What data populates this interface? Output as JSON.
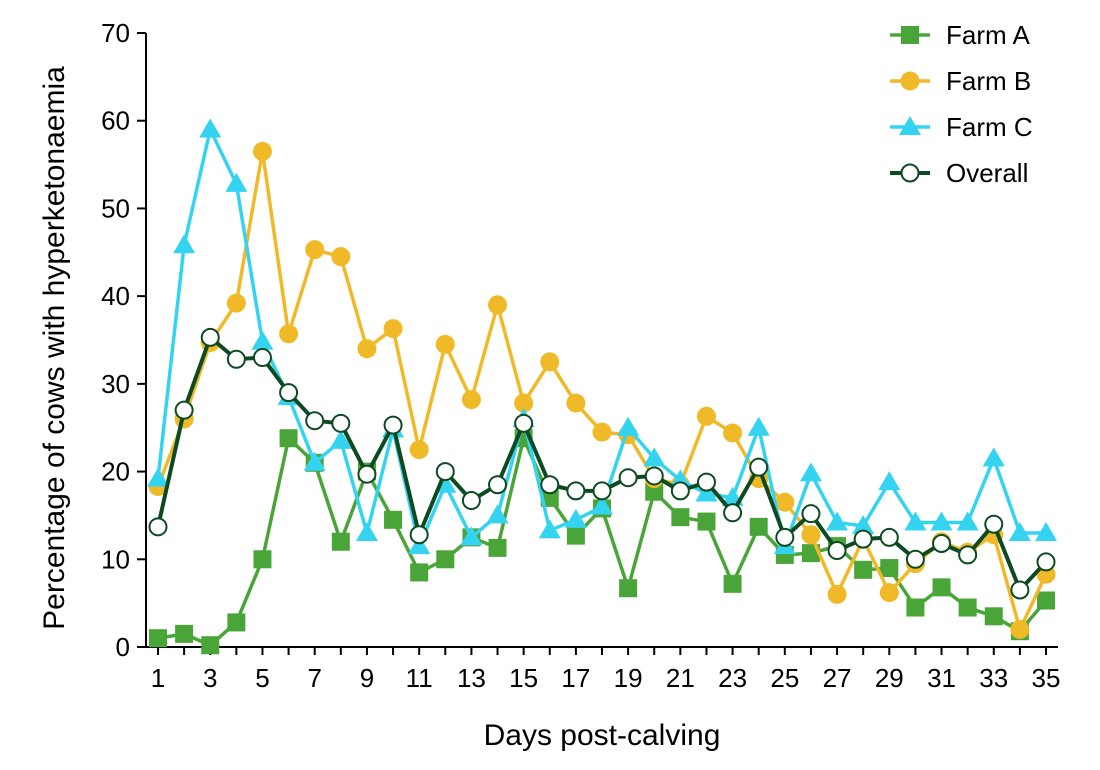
{
  "chart_data": {
    "type": "line",
    "xlabel": "Days post-calving",
    "ylabel": "Percentage of cows with hyperketonaemia",
    "xlim": [
      1,
      35
    ],
    "ylim": [
      0,
      70
    ],
    "x_ticks": [
      1,
      3,
      5,
      7,
      9,
      11,
      13,
      15,
      17,
      19,
      21,
      23,
      25,
      27,
      29,
      31,
      33,
      35
    ],
    "x_tick_labels": [
      "1",
      "3",
      "5",
      "7",
      "9",
      "11",
      "13",
      "15",
      "17",
      "19",
      "21",
      "23",
      "25",
      "27",
      "29",
      "31",
      "33",
      "35"
    ],
    "y_ticks": [
      0,
      10,
      20,
      30,
      40,
      50,
      60,
      70
    ],
    "y_tick_labels": [
      "0",
      "10",
      "20",
      "30",
      "40",
      "50",
      "60",
      "70"
    ],
    "grid": false,
    "legend": "top-right",
    "x": [
      1,
      2,
      3,
      4,
      5,
      6,
      7,
      8,
      9,
      10,
      11,
      12,
      13,
      14,
      15,
      16,
      17,
      18,
      19,
      20,
      21,
      22,
      23,
      24,
      25,
      26,
      27,
      28,
      29,
      30,
      31,
      32,
      33,
      34,
      35
    ],
    "series": [
      {
        "name": "Farm A",
        "marker": "square",
        "color": "#4aa538",
        "values": [
          1.0,
          1.5,
          0.2,
          2.8,
          10.0,
          23.8,
          21.0,
          12.0,
          20.0,
          14.5,
          8.5,
          10.0,
          12.5,
          11.3,
          23.8,
          17.0,
          12.7,
          15.8,
          6.7,
          17.7,
          14.8,
          14.3,
          7.2,
          13.7,
          10.5,
          10.7,
          11.5,
          8.8,
          9.0,
          4.5,
          6.8,
          4.5,
          3.5,
          1.8,
          5.3
        ]
      },
      {
        "name": "Farm B",
        "marker": "circle",
        "color": "#f0b927",
        "values": [
          18.3,
          26.0,
          34.7,
          39.2,
          56.5,
          35.7,
          45.3,
          44.5,
          34.0,
          36.3,
          22.5,
          34.5,
          28.2,
          39.0,
          27.8,
          32.5,
          27.8,
          24.5,
          24.2,
          19.2,
          18.5,
          26.3,
          24.4,
          19.2,
          16.5,
          12.8,
          6.0,
          12.3,
          6.2,
          9.5,
          12.0,
          10.8,
          12.8,
          2.0,
          8.3
        ]
      },
      {
        "name": "Farm C",
        "marker": "triangle",
        "color": "#34d3f0",
        "values": [
          19.2,
          45.8,
          59.0,
          52.8,
          34.8,
          28.5,
          21.0,
          23.5,
          13.0,
          24.8,
          11.5,
          18.5,
          12.5,
          15.0,
          26.0,
          13.3,
          14.5,
          16.0,
          25.0,
          21.5,
          19.0,
          17.5,
          17.0,
          25.0,
          11.5,
          19.8,
          14.2,
          13.8,
          18.8,
          14.2,
          14.2,
          14.2,
          21.5,
          13.0,
          13.0
        ]
      },
      {
        "name": "Overall",
        "marker": "open-circle",
        "color": "#0d4a22",
        "values": [
          13.7,
          27.0,
          35.3,
          32.8,
          33.0,
          29.0,
          25.8,
          25.5,
          19.7,
          25.3,
          12.8,
          20.0,
          16.7,
          18.5,
          25.5,
          18.5,
          17.8,
          17.8,
          19.3,
          19.5,
          17.8,
          18.8,
          15.3,
          20.5,
          12.5,
          15.2,
          11.0,
          12.3,
          12.5,
          10.0,
          11.8,
          10.5,
          14.0,
          6.5,
          9.7
        ]
      }
    ]
  }
}
